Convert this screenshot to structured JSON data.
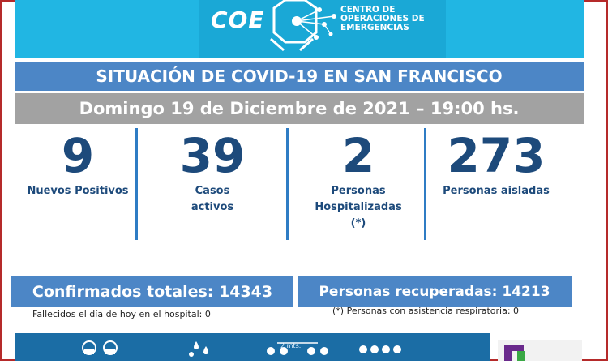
{
  "header": {
    "logo_text": "COE",
    "org_line1": "CENTRO DE",
    "org_line2": "OPERACIONES DE",
    "org_line3": "EMERGENCIAS",
    "bg_color": "#21b6e3"
  },
  "title": "SITUACIÓN DE COVID-19 EN SAN FRANCISCO",
  "date": "Domingo 19 de Diciembre de 2021 – 19:00 hs.",
  "stats": [
    {
      "value": "9",
      "label_lines": [
        "Nuevos Positivos"
      ]
    },
    {
      "value": "39",
      "label_lines": [
        "Casos",
        "activos"
      ]
    },
    {
      "value": "2",
      "label_lines": [
        "Personas",
        "Hospitalizadas",
        "(*)"
      ]
    },
    {
      "value": "273",
      "label_lines": [
        "Personas aisladas"
      ]
    }
  ],
  "confirmed": "Confirmados totales: 14343",
  "recovered": "Personas recuperadas: 14213",
  "note_deaths": "Fallecidos el día de hoy en el hospital: 0",
  "note_resp": "(*) Personas con asistencia respiratoria: 0",
  "band_label": "2 mts.",
  "colors": {
    "accent_blue": "#4c86c6",
    "number_blue": "#1d4a7b",
    "gray_bar": "#a2a2a2",
    "frame_red": "#b52a2a"
  }
}
